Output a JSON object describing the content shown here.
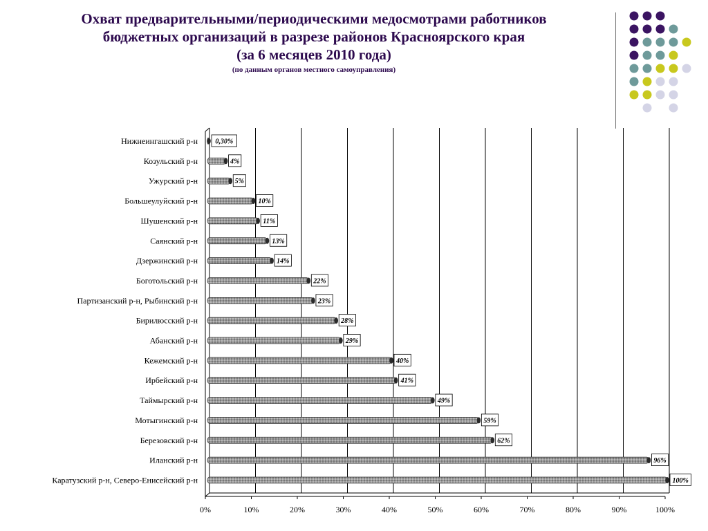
{
  "header": {
    "title_line1": "Охват предварительными/периодическими медосмотрами работников",
    "title_line2": "бюджетных организаций  в разрезе районов Красноярского края",
    "title_line3": "(за 6 месяцев 2010 года)",
    "subtitle": "(по данным органов местного самоуправления)"
  },
  "decoration": {
    "dot_colors": {
      "purple": "#3b1462",
      "teal": "#6e9a9a",
      "yellow": "#c8c81e",
      "lavender": "#d4d4e6"
    }
  },
  "chart_data": {
    "type": "bar",
    "orientation": "horizontal",
    "categories": [
      "Нижнеингашский р-н",
      "Козульский р-н",
      "Ужурский р-н",
      "Большеулуйский р-н",
      "Шушенский р-н",
      "Саянский р-н",
      "Дзержинский р-н",
      "Боготольский р-н",
      "Партизанский р-н, Рыбинский р-н",
      "Бирилюсский р-н",
      "Абанский р-н",
      "Кежемский р-н",
      "Ирбейский р-н",
      "Таймырский р-н",
      "Мотыгинский р-н",
      "Березовский р-н",
      "Иланский р-н",
      "Каратузский р-н, Северо-Енисейский р-н"
    ],
    "values": [
      0.3,
      4,
      5,
      10,
      11,
      13,
      14,
      22,
      23,
      28,
      29,
      40,
      41,
      49,
      59,
      62,
      96,
      100
    ],
    "data_labels": [
      "0,30%",
      "4%",
      "5%",
      "10%",
      "11%",
      "13%",
      "14%",
      "22%",
      "23%",
      "28%",
      "29%",
      "40%",
      "41%",
      "49%",
      "59%",
      "62%",
      "96%",
      "100%"
    ],
    "x_ticks": [
      "0%",
      "10%",
      "20%",
      "30%",
      "40%",
      "50%",
      "60%",
      "70%",
      "80%",
      "90%",
      "100%"
    ],
    "xlim": [
      0,
      100
    ],
    "grid": true,
    "bar_color": "#9a9a9a",
    "bar_cap_color": "#2a2a2a"
  }
}
